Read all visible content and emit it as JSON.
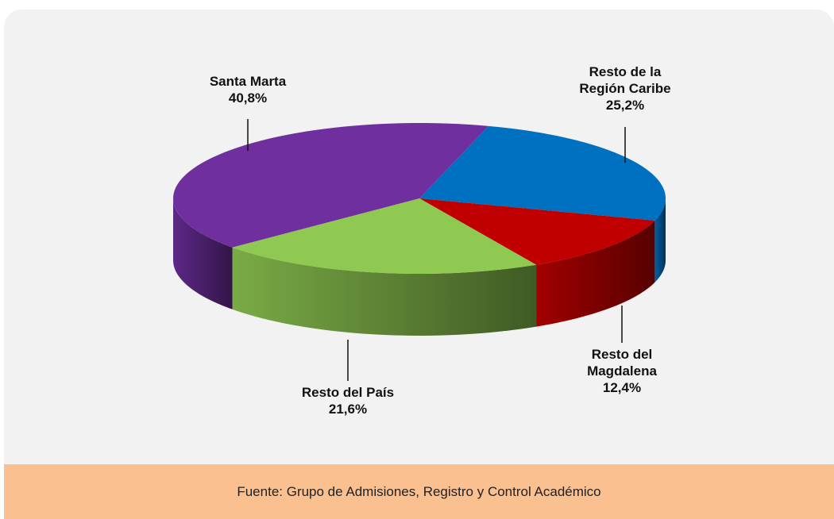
{
  "chart_data": {
    "type": "pie3d",
    "categories": [
      "Santa Marta",
      "Resto de la Región Caribe",
      "Resto del Magdalena",
      "Resto del País"
    ],
    "values": [
      40.8,
      25.2,
      12.4,
      21.6
    ],
    "value_labels": [
      "40,8%",
      "25,2%",
      "12,4%",
      "21,6%"
    ],
    "colors": [
      "#6f2f9f",
      "#0070c0",
      "#c00000",
      "#8fc951"
    ],
    "source": "Fuente: Grupo de Admisiones, Registro y Control Académico"
  }
}
